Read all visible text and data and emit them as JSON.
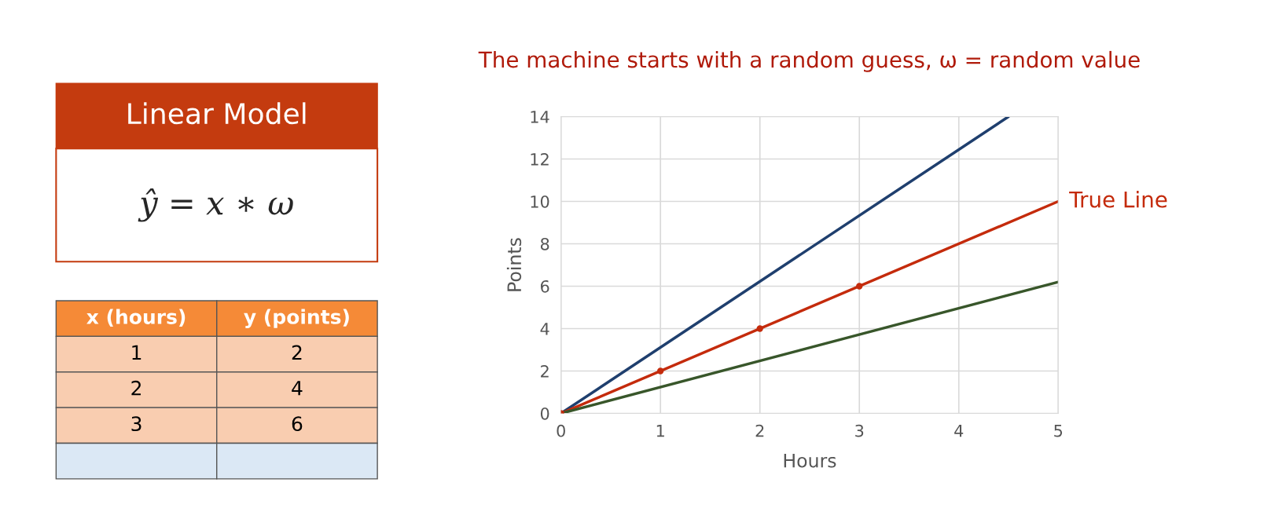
{
  "chart_data": [
    {
      "type": "other",
      "title": "Linear Model",
      "annotations": [
        "ŷ = x ∗ ω",
        "x (hours)",
        "y (points)",
        "1",
        "2",
        "2",
        "4",
        "3",
        "6"
      ]
    },
    {
      "type": "line",
      "title": "The machine starts with a random guess, ω = random value",
      "xlabel": "Hours",
      "ylabel": "Points",
      "xlim": [
        0,
        5
      ],
      "ylim": [
        0,
        14
      ],
      "xticks": [
        0,
        1,
        2,
        3,
        4,
        5
      ],
      "yticks": [
        0,
        2,
        4,
        6,
        8,
        10,
        12,
        14
      ],
      "grid": true,
      "legend": false,
      "series": [
        {
          "color": "#1f3f6e",
          "x": [
            0,
            4.5
          ],
          "values": [
            0,
            14
          ]
        },
        {
          "name": "True Line",
          "color": "#c42b0c",
          "x": [
            0,
            5
          ],
          "values": [
            0,
            10
          ]
        },
        {
          "color": "#38562a",
          "x": [
            0,
            5
          ],
          "values": [
            0,
            6.2
          ]
        },
        {
          "type": "scatter",
          "color": "#c42b0c",
          "marker": "circle",
          "x": [
            0,
            1,
            2,
            3
          ],
          "values": [
            0,
            2,
            4,
            6
          ]
        }
      ]
    }
  ]
}
